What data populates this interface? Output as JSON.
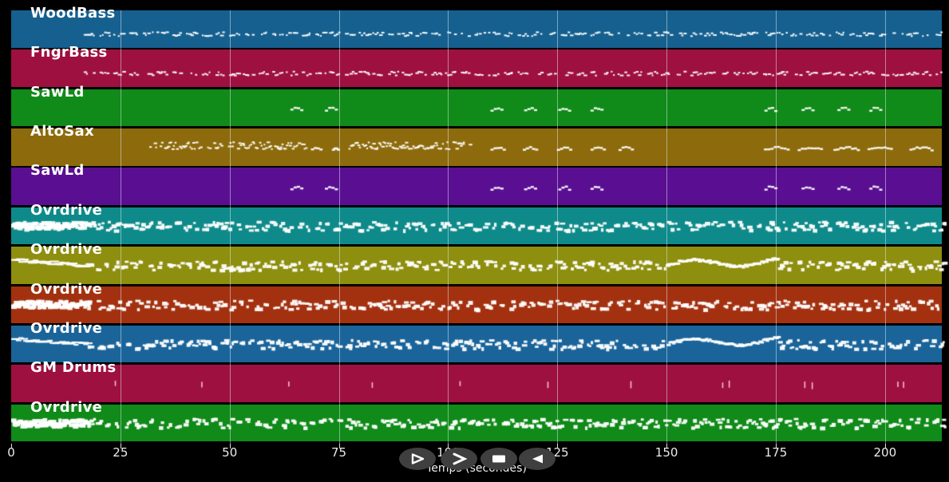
{
  "window": {
    "background": "#000000"
  },
  "axis": {
    "title": "Temps (secondes)",
    "ticks": [
      "0",
      "25",
      "50",
      "75",
      "100",
      "125",
      "150",
      "175",
      "200"
    ],
    "tick_values": [
      0,
      25,
      50,
      75,
      100,
      125,
      150,
      175,
      200
    ],
    "time_max": 213,
    "label_color": "#ececec",
    "grid_color": "#e1ebf5"
  },
  "transport": {
    "background": "#3f3f3f",
    "glyph_color": "#ffffff",
    "buttons": [
      {
        "id": "play"
      },
      {
        "id": "fast-forward"
      },
      {
        "id": "stop"
      },
      {
        "id": "rewind"
      }
    ]
  },
  "tracks": [
    {
      "label": "WoodBass",
      "color": "#15608f",
      "phrases": [
        {
          "kind": "bass",
          "start": 16.6,
          "end": 213
        }
      ]
    },
    {
      "label": "FngrBass",
      "color": "#9e1040",
      "phrases": [
        {
          "kind": "bass",
          "start": 16.6,
          "end": 213
        }
      ]
    },
    {
      "label": "SawLd",
      "color": "#108a18",
      "phrases": [
        {
          "kind": "riff",
          "start": 63.9,
          "end": 66.9
        },
        {
          "kind": "riff",
          "start": 71.8,
          "end": 74.8
        },
        {
          "kind": "riff",
          "start": 109.7,
          "end": 112.7
        },
        {
          "kind": "riff",
          "start": 117.4,
          "end": 120.4
        },
        {
          "kind": "riff",
          "start": 125.2,
          "end": 128.2
        },
        {
          "kind": "riff",
          "start": 132.6,
          "end": 135.6
        },
        {
          "kind": "riff",
          "start": 172.4,
          "end": 175.4
        },
        {
          "kind": "riff",
          "start": 180.9,
          "end": 183.9
        },
        {
          "kind": "riff",
          "start": 189.1,
          "end": 192.1
        },
        {
          "kind": "riff",
          "start": 196.4,
          "end": 199.4
        }
      ]
    },
    {
      "label": "AltoSax",
      "color": "#8d6b0c",
      "phrases": [
        {
          "kind": "melody",
          "start": 31.6,
          "end": 67.4
        },
        {
          "kind": "riff",
          "start": 68.6,
          "end": 71.2
        },
        {
          "kind": "riff",
          "start": 73.4,
          "end": 74.9
        },
        {
          "kind": "melody",
          "start": 77.2,
          "end": 104.8
        },
        {
          "kind": "riff",
          "start": 109.7,
          "end": 113.2
        },
        {
          "kind": "riff",
          "start": 117.1,
          "end": 120.6
        },
        {
          "kind": "riff",
          "start": 124.9,
          "end": 128.4
        },
        {
          "kind": "riff",
          "start": 132.6,
          "end": 136.1
        },
        {
          "kind": "riff",
          "start": 139.0,
          "end": 142.5
        },
        {
          "kind": "riff",
          "start": 172.3,
          "end": 178.2
        },
        {
          "kind": "riff",
          "start": 180.0,
          "end": 185.8
        },
        {
          "kind": "riff",
          "start": 188.2,
          "end": 194.2
        },
        {
          "kind": "riff",
          "start": 196.0,
          "end": 201.8
        },
        {
          "kind": "riff",
          "start": 205.6,
          "end": 211.1
        }
      ]
    },
    {
      "label": "SawLd",
      "color": "#5a0f92",
      "phrases": [
        {
          "kind": "riff",
          "start": 63.9,
          "end": 66.9
        },
        {
          "kind": "riff",
          "start": 71.8,
          "end": 74.8
        },
        {
          "kind": "riff",
          "start": 109.7,
          "end": 112.7
        },
        {
          "kind": "riff",
          "start": 117.4,
          "end": 120.4
        },
        {
          "kind": "riff",
          "start": 125.2,
          "end": 128.2
        },
        {
          "kind": "riff",
          "start": 132.6,
          "end": 135.6
        },
        {
          "kind": "riff",
          "start": 172.4,
          "end": 175.4
        },
        {
          "kind": "riff",
          "start": 180.9,
          "end": 183.9
        },
        {
          "kind": "riff",
          "start": 189.1,
          "end": 192.1
        },
        {
          "kind": "riff",
          "start": 196.4,
          "end": 199.4
        }
      ]
    },
    {
      "label": "Ovrdrive",
      "color": "#0f8a8a",
      "phrases": [
        {
          "kind": "blob",
          "start": 0,
          "end": 17.5
        },
        {
          "kind": "cluster",
          "start": 17.5,
          "end": 213
        }
      ]
    },
    {
      "label": "Ovrdrive",
      "color": "#8e8e0f",
      "phrases": [
        {
          "kind": "flat",
          "start": 0,
          "end": 17.5
        },
        {
          "kind": "cluster",
          "start": 17.5,
          "end": 150
        },
        {
          "kind": "wave",
          "start": 150,
          "end": 175.5
        },
        {
          "kind": "cluster",
          "start": 175.5,
          "end": 213
        }
      ]
    },
    {
      "label": "Ovrdrive",
      "color": "#a33110",
      "phrases": [
        {
          "kind": "blob",
          "start": 0,
          "end": 17.5
        },
        {
          "kind": "cluster",
          "start": 17.5,
          "end": 213
        }
      ]
    },
    {
      "label": "Ovrdrive",
      "color": "#1a649a",
      "phrases": [
        {
          "kind": "flat",
          "start": 0,
          "end": 17.5
        },
        {
          "kind": "cluster",
          "start": 17.5,
          "end": 150
        },
        {
          "kind": "wave",
          "start": 150,
          "end": 175.5
        },
        {
          "kind": "cluster",
          "start": 175.5,
          "end": 213
        }
      ]
    },
    {
      "label": "GM Drums",
      "color": "#9e1040",
      "phrases": [],
      "hits": [
        23.7,
        43.5,
        63.4,
        82.5,
        102.6,
        122.7,
        141.7,
        162.7,
        164.2,
        181.5,
        183.2,
        202.8,
        204.1
      ]
    },
    {
      "label": "Ovrdrive",
      "color": "#108a18",
      "phrases": [
        {
          "kind": "blob",
          "start": 0,
          "end": 17.5
        },
        {
          "kind": "cluster",
          "start": 17.5,
          "end": 213
        }
      ]
    }
  ]
}
